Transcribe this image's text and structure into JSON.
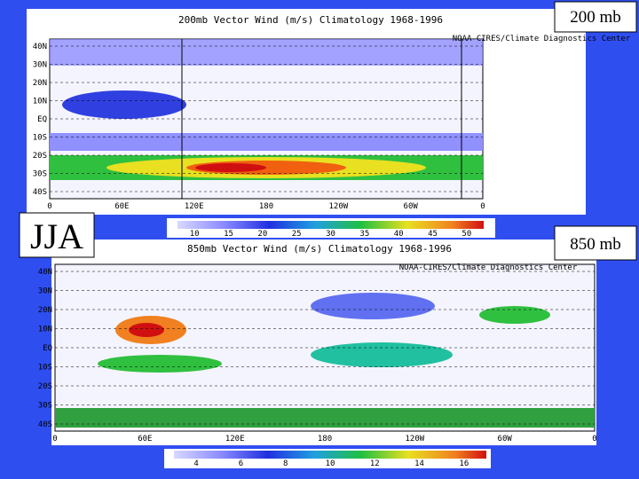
{
  "labels": {
    "top_level": "200 mb",
    "season": "JJA",
    "bottom_level": "850 mb"
  },
  "maps": [
    {
      "title": "200mb Vector Wind (m/s) Climatology 1968-1996",
      "credit": "NOAA-CIRES/Climate Diagnostics Center",
      "lat_labels": [
        "40N",
        "30N",
        "20N",
        "10N",
        "EQ",
        "10S",
        "20S",
        "30S",
        "40S"
      ],
      "lon_labels": [
        "0",
        "60E",
        "120E",
        "180",
        "120W",
        "60W",
        "0"
      ],
      "colorbar": [
        10,
        15,
        20,
        25,
        30,
        35,
        40,
        45,
        50
      ]
    },
    {
      "title": "850mb Vector Wind (m/s) Climatology 1968-1996",
      "credit": "NOAA-CIRES/Climate Diagnostics Center",
      "lat_labels": [
        "40N",
        "30N",
        "20N",
        "10N",
        "EQ",
        "10S",
        "20S",
        "30S",
        "40S"
      ],
      "lon_labels": [
        "0",
        "60E",
        "120E",
        "180",
        "120W",
        "60W",
        "0"
      ],
      "colorbar": [
        4,
        6,
        8,
        10,
        12,
        14,
        16
      ]
    }
  ]
}
